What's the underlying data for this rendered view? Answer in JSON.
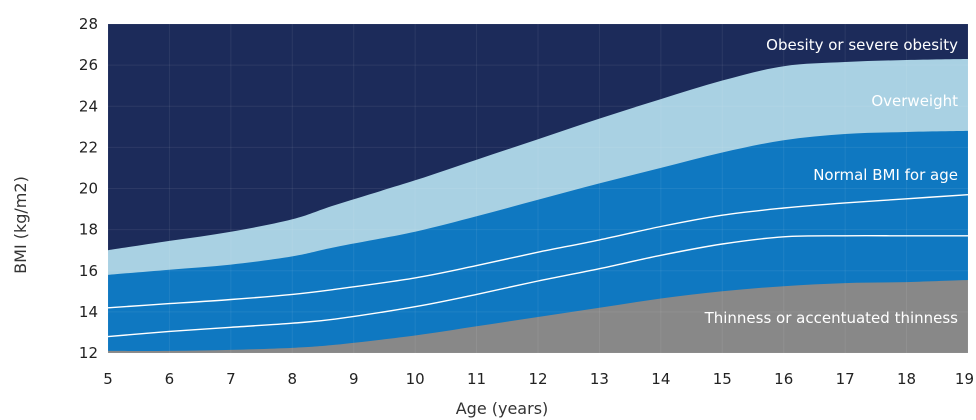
{
  "chart_data": {
    "type": "area",
    "xlabel": "Age (years)",
    "ylabel": "BMI (kg/m2)",
    "xlim": [
      5,
      19
    ],
    "ylim": [
      12,
      28
    ],
    "x_ticks": [
      5,
      6,
      7,
      8,
      9,
      10,
      11,
      12,
      13,
      14,
      15,
      16,
      17,
      18,
      19
    ],
    "y_ticks": [
      12,
      14,
      16,
      18,
      20,
      22,
      24,
      26,
      28
    ],
    "x": [
      5,
      6,
      7,
      8,
      8.7,
      10,
      11,
      12,
      13,
      14,
      15,
      16,
      17,
      18,
      19
    ],
    "curves": [
      {
        "id": "thin-upper",
        "values": [
          12.1,
          12.1,
          12.15,
          12.25,
          12.4,
          12.85,
          13.3,
          13.75,
          14.2,
          14.65,
          15.0,
          15.25,
          15.4,
          15.45,
          15.55
        ]
      },
      {
        "id": "inner-lower",
        "values": [
          12.8,
          13.05,
          13.25,
          13.45,
          13.65,
          14.25,
          14.85,
          15.5,
          16.1,
          16.75,
          17.3,
          17.65,
          17.7,
          17.7,
          17.7
        ]
      },
      {
        "id": "inner-upper",
        "values": [
          14.2,
          14.4,
          14.6,
          14.85,
          15.1,
          15.65,
          16.25,
          16.9,
          17.5,
          18.15,
          18.7,
          19.05,
          19.3,
          19.5,
          19.7
        ]
      },
      {
        "id": "normal-upper",
        "values": [
          15.8,
          16.05,
          16.3,
          16.7,
          17.15,
          17.9,
          18.65,
          19.45,
          20.25,
          21.0,
          21.75,
          22.35,
          22.65,
          22.75,
          22.8
        ]
      },
      {
        "id": "overweight-upper",
        "values": [
          17.0,
          17.45,
          17.9,
          18.5,
          19.2,
          20.4,
          21.4,
          22.4,
          23.4,
          24.35,
          25.25,
          25.95,
          26.15,
          26.25,
          26.3
        ]
      }
    ],
    "bands": [
      {
        "name": "Thinness or accentuated thinness",
        "color": "#888888"
      },
      {
        "name": "Normal BMI for age",
        "color": "#0f78c1"
      },
      {
        "name": "Overweight",
        "color": "#a9d1e3"
      },
      {
        "name": "Obesity or severe obesity",
        "color": "#1c2b5a"
      }
    ],
    "grid": true,
    "legend": "none"
  }
}
